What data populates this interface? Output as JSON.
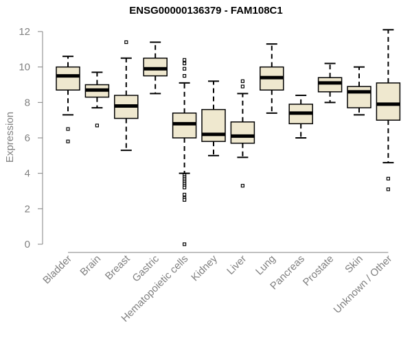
{
  "chart_data": {
    "type": "boxplot",
    "title": "ENSG00000136379 - FAM108C1",
    "xlabel": "",
    "ylabel": "Expression",
    "ylim": [
      0,
      12
    ],
    "yticks": [
      0,
      2,
      4,
      6,
      8,
      10,
      12
    ],
    "grid": false,
    "colors": {
      "box_fill": "#efe8cf",
      "box_stroke": "#000000",
      "median": "#000000",
      "axis": "#808080",
      "tick_label": "#808080"
    },
    "categories": [
      "Bladder",
      "Brain",
      "Breast",
      "Gastric",
      "Hematopoietic cells",
      "Kidney",
      "Liver",
      "Lung",
      "Pancreas",
      "Prostate",
      "Skin",
      "Unknown / Other"
    ],
    "boxes": [
      {
        "category": "Bladder",
        "whisker_low": 7.3,
        "q1": 8.7,
        "median": 9.5,
        "q3": 10.0,
        "whisker_high": 10.6,
        "outliers": [
          6.5,
          5.8
        ]
      },
      {
        "category": "Brain",
        "whisker_low": 7.7,
        "q1": 8.3,
        "median": 8.7,
        "q3": 9.0,
        "whisker_high": 9.7,
        "outliers": [
          6.7
        ]
      },
      {
        "category": "Breast",
        "whisker_low": 5.3,
        "q1": 7.1,
        "median": 7.8,
        "q3": 8.4,
        "whisker_high": 10.5,
        "outliers": [
          11.4
        ]
      },
      {
        "category": "Gastric",
        "whisker_low": 8.5,
        "q1": 9.5,
        "median": 9.9,
        "q3": 10.5,
        "whisker_high": 11.4,
        "outliers": []
      },
      {
        "category": "Hematopoietic cells",
        "whisker_low": 4.0,
        "q1": 6.0,
        "median": 6.8,
        "q3": 7.4,
        "whisker_high": 9.1,
        "outliers": [
          10.4,
          10.2,
          9.9,
          9.5,
          3.9,
          3.8,
          3.7,
          3.6,
          3.5,
          3.4,
          3.3,
          3.2,
          2.8,
          2.6,
          2.5,
          0.0
        ]
      },
      {
        "category": "Kidney",
        "whisker_low": 5.0,
        "q1": 5.8,
        "median": 6.2,
        "q3": 7.6,
        "whisker_high": 9.2,
        "outliers": []
      },
      {
        "category": "Liver",
        "whisker_low": 4.9,
        "q1": 5.7,
        "median": 6.1,
        "q3": 6.9,
        "whisker_high": 8.5,
        "outliers": [
          9.2,
          8.9,
          3.3
        ]
      },
      {
        "category": "Lung",
        "whisker_low": 7.4,
        "q1": 8.7,
        "median": 9.4,
        "q3": 10.0,
        "whisker_high": 11.3,
        "outliers": []
      },
      {
        "category": "Pancreas",
        "whisker_low": 6.0,
        "q1": 6.8,
        "median": 7.4,
        "q3": 7.9,
        "whisker_high": 8.4,
        "outliers": []
      },
      {
        "category": "Prostate",
        "whisker_low": 8.0,
        "q1": 8.6,
        "median": 9.1,
        "q3": 9.4,
        "whisker_high": 10.2,
        "outliers": []
      },
      {
        "category": "Skin",
        "whisker_low": 7.3,
        "q1": 7.7,
        "median": 8.6,
        "q3": 8.9,
        "whisker_high": 10.0,
        "outliers": []
      },
      {
        "category": "Unknown / Other",
        "whisker_low": 4.6,
        "q1": 7.0,
        "median": 7.9,
        "q3": 9.1,
        "whisker_high": 12.1,
        "outliers": [
          3.7,
          3.1
        ]
      }
    ]
  }
}
